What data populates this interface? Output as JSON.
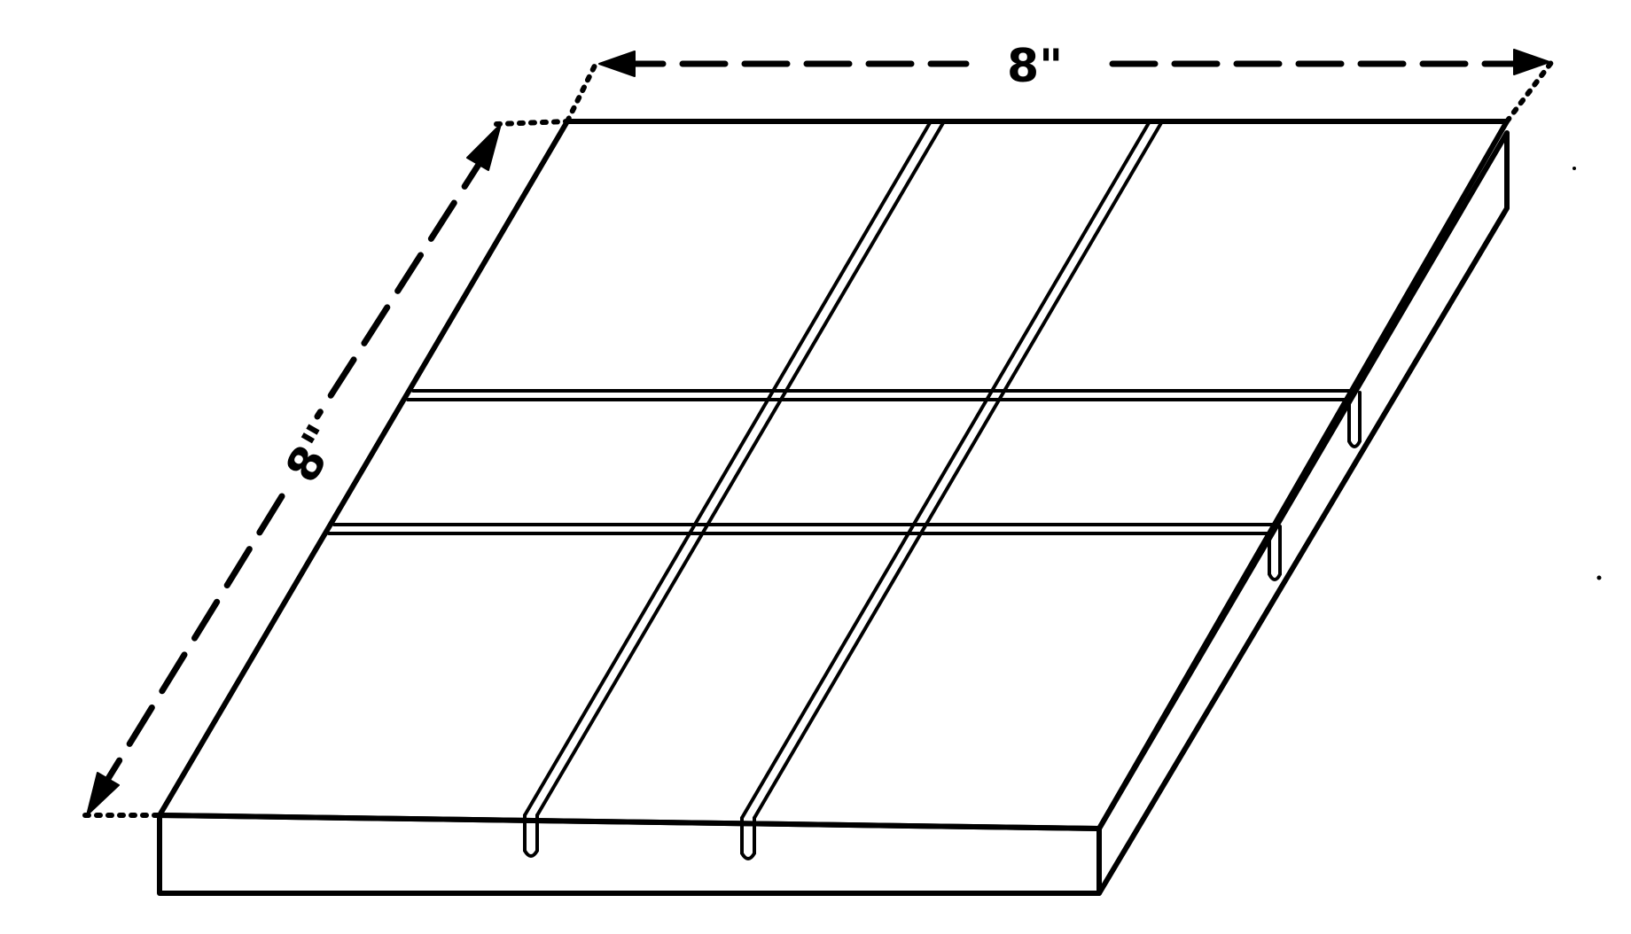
{
  "dimensions": {
    "width_label": "8\"",
    "depth_label": "8\""
  },
  "colors": {
    "ink": "#000000",
    "paper": "#ffffff"
  }
}
